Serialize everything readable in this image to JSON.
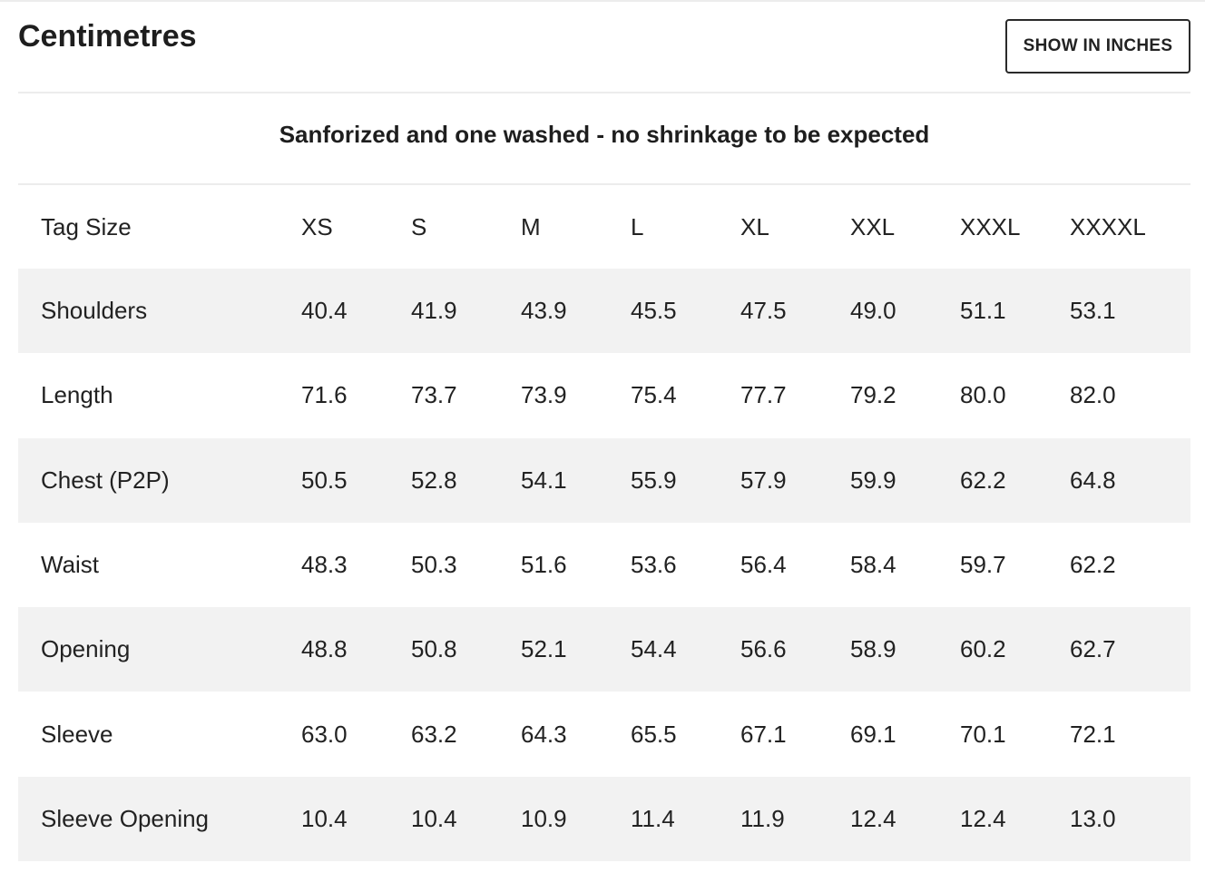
{
  "header": {
    "title": "Centimetres",
    "unit_toggle_label": "SHOW IN INCHES"
  },
  "note": "Sanforized and one washed - no shrinkage to be expected",
  "table": {
    "headers": [
      "Tag Size",
      "XS",
      "S",
      "M",
      "L",
      "XL",
      "XXL",
      "XXXL",
      "XXXXL"
    ],
    "rows": [
      {
        "label": "Shoulders",
        "values": [
          "40.4",
          "41.9",
          "43.9",
          "45.5",
          "47.5",
          "49.0",
          "51.1",
          "53.1"
        ]
      },
      {
        "label": "Length",
        "values": [
          "71.6",
          "73.7",
          "73.9",
          "75.4",
          "77.7",
          "79.2",
          "80.0",
          "82.0"
        ]
      },
      {
        "label": "Chest (P2P)",
        "values": [
          "50.5",
          "52.8",
          "54.1",
          "55.9",
          "57.9",
          "59.9",
          "62.2",
          "64.8"
        ]
      },
      {
        "label": "Waist",
        "values": [
          "48.3",
          "50.3",
          "51.6",
          "53.6",
          "56.4",
          "58.4",
          "59.7",
          "62.2"
        ]
      },
      {
        "label": "Opening",
        "values": [
          "48.8",
          "50.8",
          "52.1",
          "54.4",
          "56.6",
          "58.9",
          "60.2",
          "62.7"
        ]
      },
      {
        "label": "Sleeve",
        "values": [
          "63.0",
          "63.2",
          "64.3",
          "65.5",
          "67.1",
          "69.1",
          "70.1",
          "72.1"
        ]
      },
      {
        "label": "Sleeve Opening",
        "values": [
          "10.4",
          "10.4",
          "10.9",
          "11.4",
          "11.9",
          "12.4",
          "12.4",
          "13.0"
        ]
      }
    ]
  },
  "colors": {
    "row_shade": "#f2f2f2",
    "divider": "#ececec",
    "text": "#222222"
  }
}
